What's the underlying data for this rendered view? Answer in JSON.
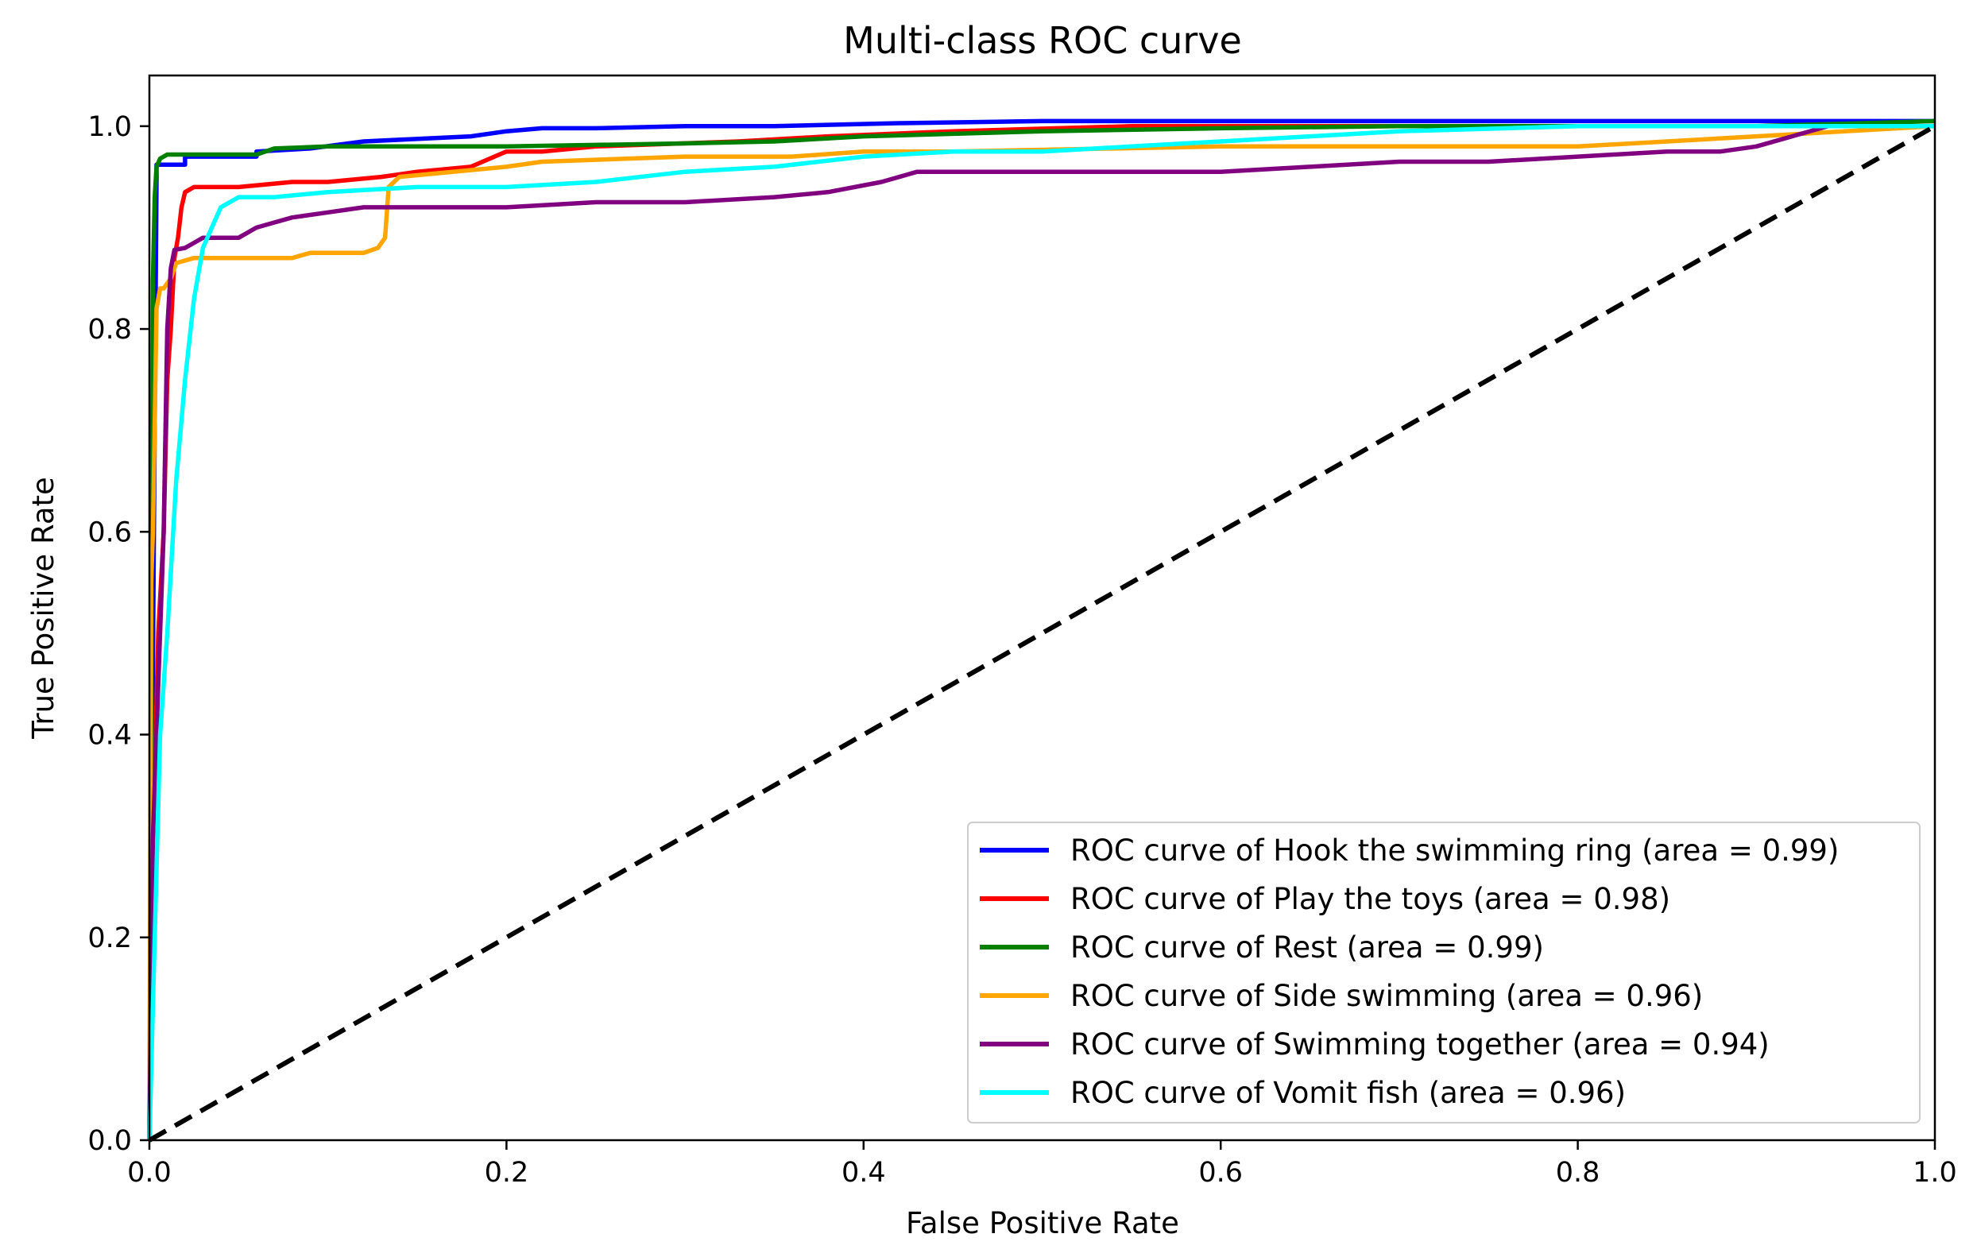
{
  "chart_data": {
    "type": "line",
    "title": "Multi-class ROC curve",
    "xlabel": "False Positive Rate",
    "ylabel": "True Positive Rate",
    "xlim": [
      0.0,
      1.0
    ],
    "ylim": [
      0.0,
      1.05
    ],
    "xticks": [
      "0.0",
      "0.2",
      "0.4",
      "0.6",
      "0.8",
      "1.0"
    ],
    "yticks": [
      "0.0",
      "0.2",
      "0.4",
      "0.6",
      "0.8",
      "1.0"
    ],
    "grid": false,
    "legend_position": "lower-right",
    "series": [
      {
        "name": "ROC curve of Hook the swimming ring (area = 0.99)",
        "color": "#0000ff",
        "x": [
          0.0,
          0.004,
          0.004,
          0.02,
          0.02,
          0.06,
          0.06,
          0.09,
          0.12,
          0.18,
          0.2,
          0.22,
          0.25,
          0.3,
          0.35,
          0.42,
          0.5,
          0.6,
          0.7,
          0.8,
          0.9,
          1.0
        ],
        "y": [
          0.0,
          0.95,
          0.962,
          0.962,
          0.97,
          0.97,
          0.975,
          0.978,
          0.985,
          0.99,
          0.995,
          0.998,
          0.998,
          1.0,
          1.0,
          1.003,
          1.005,
          1.005,
          1.005,
          1.005,
          1.005,
          1.005
        ]
      },
      {
        "name": "ROC curve of Play the toys (area = 0.98)",
        "color": "#ff0000",
        "x": [
          0.0,
          0.002,
          0.005,
          0.008,
          0.01,
          0.012,
          0.014,
          0.016,
          0.018,
          0.02,
          0.025,
          0.05,
          0.08,
          0.1,
          0.13,
          0.15,
          0.18,
          0.2,
          0.22,
          0.25,
          0.33,
          0.38,
          0.45,
          0.55,
          0.65,
          0.75,
          0.85,
          1.0
        ],
        "y": [
          0.0,
          0.3,
          0.5,
          0.6,
          0.75,
          0.8,
          0.87,
          0.89,
          0.92,
          0.935,
          0.94,
          0.94,
          0.945,
          0.945,
          0.95,
          0.955,
          0.96,
          0.975,
          0.975,
          0.98,
          0.985,
          0.99,
          0.995,
          1.0,
          1.0,
          1.0,
          1.0,
          1.0
        ]
      },
      {
        "name": "ROC curve of Rest (area = 0.99)",
        "color": "#008000",
        "x": [
          0.0,
          0.002,
          0.003,
          0.004,
          0.006,
          0.01,
          0.06,
          0.07,
          0.1,
          0.2,
          0.3,
          0.35,
          0.4,
          0.5,
          0.6,
          0.7,
          0.8,
          0.9,
          1.0
        ],
        "y": [
          0.0,
          0.85,
          0.93,
          0.96,
          0.968,
          0.972,
          0.972,
          0.978,
          0.98,
          0.98,
          0.983,
          0.985,
          0.99,
          0.995,
          0.998,
          1.0,
          1.0,
          1.0,
          1.005
        ]
      },
      {
        "name": "ROC curve of Side swimming (area = 0.96)",
        "color": "#ffa500",
        "x": [
          0.0,
          0.001,
          0.002,
          0.004,
          0.006,
          0.008,
          0.012,
          0.015,
          0.025,
          0.06,
          0.08,
          0.09,
          0.12,
          0.128,
          0.132,
          0.134,
          0.14,
          0.2,
          0.22,
          0.3,
          0.36,
          0.4,
          0.45,
          0.6,
          0.65,
          0.7,
          0.8,
          0.85,
          0.9,
          1.0
        ],
        "y": [
          0.0,
          0.55,
          0.6,
          0.82,
          0.84,
          0.84,
          0.85,
          0.865,
          0.87,
          0.87,
          0.87,
          0.875,
          0.875,
          0.88,
          0.89,
          0.94,
          0.95,
          0.96,
          0.965,
          0.97,
          0.97,
          0.975,
          0.975,
          0.98,
          0.98,
          0.98,
          0.98,
          0.985,
          0.99,
          1.0
        ]
      },
      {
        "name": "ROC curve of Swimming together (area = 0.94)",
        "color": "#800080",
        "x": [
          0.0,
          0.002,
          0.005,
          0.008,
          0.01,
          0.012,
          0.014,
          0.02,
          0.025,
          0.03,
          0.05,
          0.06,
          0.07,
          0.08,
          0.1,
          0.12,
          0.15,
          0.2,
          0.25,
          0.3,
          0.35,
          0.38,
          0.41,
          0.43,
          0.5,
          0.6,
          0.65,
          0.7,
          0.75,
          0.8,
          0.85,
          0.88,
          0.9,
          0.92,
          0.94
        ],
        "y": [
          0.0,
          0.3,
          0.45,
          0.6,
          0.8,
          0.86,
          0.878,
          0.88,
          0.885,
          0.89,
          0.89,
          0.9,
          0.905,
          0.91,
          0.915,
          0.92,
          0.92,
          0.92,
          0.925,
          0.925,
          0.93,
          0.935,
          0.945,
          0.955,
          0.955,
          0.955,
          0.96,
          0.965,
          0.965,
          0.97,
          0.975,
          0.975,
          0.98,
          0.99,
          1.0
        ]
      },
      {
        "name": "ROC curve of Vomit fish (area = 0.96)",
        "color": "#00ffff",
        "x": [
          0.0,
          0.003,
          0.006,
          0.01,
          0.015,
          0.02,
          0.025,
          0.03,
          0.035,
          0.04,
          0.05,
          0.07,
          0.1,
          0.15,
          0.2,
          0.25,
          0.3,
          0.35,
          0.4,
          0.45,
          0.5,
          0.55,
          0.6,
          0.65,
          0.7,
          0.8,
          0.9,
          1.0
        ],
        "y": [
          0.0,
          0.2,
          0.4,
          0.5,
          0.65,
          0.75,
          0.83,
          0.88,
          0.9,
          0.92,
          0.93,
          0.93,
          0.935,
          0.94,
          0.94,
          0.945,
          0.955,
          0.96,
          0.97,
          0.975,
          0.975,
          0.98,
          0.985,
          0.99,
          0.995,
          1.0,
          1.0,
          1.0
        ]
      }
    ],
    "baseline": {
      "color": "#000000",
      "style": "dashed",
      "x": [
        0.0,
        1.0
      ],
      "y": [
        0.0,
        1.0
      ]
    }
  }
}
